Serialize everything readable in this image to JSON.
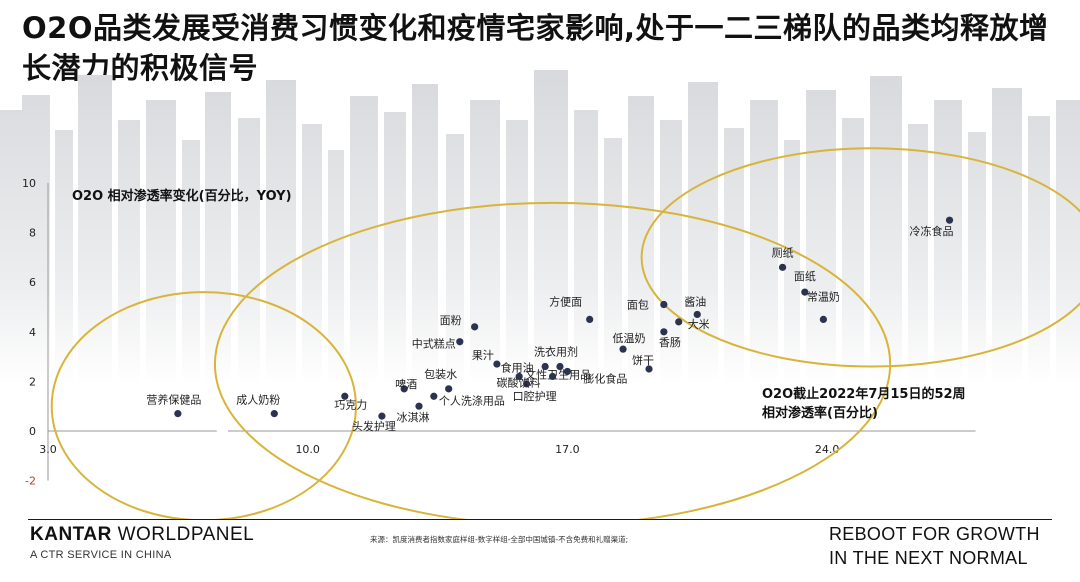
{
  "title": "O2O品类发展受消费习惯变化和疫情宅家影响,处于一二三梯队的品类均释放增长潜力的积极信号",
  "chart_data": {
    "type": "scatter",
    "y_axis_title": "O2O 相对渗透率变化(百分比，YOY)",
    "x_axis_title_line1": "O2O截止2022年7月15日的52周",
    "x_axis_title_line2": "相对渗透率(百分比)",
    "xlim": [
      3.0,
      28.0
    ],
    "ylim": [
      -2,
      10
    ],
    "x_ticks": [
      "3.0",
      "10.0",
      "17.0",
      "24.0"
    ],
    "y_ticks": [
      "-2",
      "0",
      "2",
      "4",
      "6",
      "8",
      "10"
    ],
    "axis_break_at_x": 7.7,
    "points": [
      {
        "label": "营养保健品",
        "x": 6.5,
        "y": 0.7
      },
      {
        "label": "成人奶粉",
        "x": 9.1,
        "y": 0.7
      },
      {
        "label": "巧克力",
        "x": 11.0,
        "y": 1.4
      },
      {
        "label": "头发护理",
        "x": 12.0,
        "y": 0.6
      },
      {
        "label": "啤酒",
        "x": 12.6,
        "y": 1.7
      },
      {
        "label": "冰淇淋",
        "x": 13.0,
        "y": 1.0
      },
      {
        "label": "个人洗涤用品",
        "x": 13.4,
        "y": 1.4
      },
      {
        "label": "包装水",
        "x": 13.8,
        "y": 1.7
      },
      {
        "label": "中式糕点",
        "x": 14.1,
        "y": 3.6
      },
      {
        "label": "面粉",
        "x": 14.5,
        "y": 4.2
      },
      {
        "label": "果汁",
        "x": 15.1,
        "y": 2.7
      },
      {
        "label": "文性卫生用品",
        "x": 15.7,
        "y": 2.2
      },
      {
        "label": "口腔护理",
        "x": 15.9,
        "y": 1.9
      },
      {
        "label": "食用油",
        "x": 16.4,
        "y": 2.6
      },
      {
        "label": "碳酸饮料",
        "x": 16.6,
        "y": 2.2
      },
      {
        "label": "洗衣用剂",
        "x": 16.8,
        "y": 2.6
      },
      {
        "label": "膨化食品",
        "x": 17.0,
        "y": 2.4
      },
      {
        "label": "方便面",
        "x": 17.6,
        "y": 4.5
      },
      {
        "label": "低温奶",
        "x": 18.5,
        "y": 3.3
      },
      {
        "label": "饼干",
        "x": 19.2,
        "y": 2.5
      },
      {
        "label": "香肠",
        "x": 19.6,
        "y": 4.0
      },
      {
        "label": "面包",
        "x": 19.6,
        "y": 5.1
      },
      {
        "label": "大米",
        "x": 20.0,
        "y": 4.4
      },
      {
        "label": "酱油",
        "x": 20.5,
        "y": 4.7
      },
      {
        "label": "厕纸",
        "x": 22.8,
        "y": 6.6
      },
      {
        "label": "面纸",
        "x": 23.4,
        "y": 5.6
      },
      {
        "label": "常温奶",
        "x": 23.9,
        "y": 4.5
      },
      {
        "label": "冷冻食品",
        "x": 27.3,
        "y": 8.5
      }
    ],
    "clusters": [
      {
        "name": "tier-3",
        "cx": 7.2,
        "cy": 1.0,
        "rx": 4.1,
        "ry": 4.6
      },
      {
        "name": "tier-2",
        "cx": 16.6,
        "cy": 2.7,
        "rx": 9.1,
        "ry": 6.5
      },
      {
        "name": "tier-1",
        "cx": 25.2,
        "cy": 7.0,
        "rx": 6.2,
        "ry": 4.4
      }
    ],
    "colors": {
      "point": "#2b3350",
      "ellipse": "#d8b43a",
      "axis": "#9a9a9a",
      "axis_neg": "#c0392b",
      "skyline": "#d8dadd"
    }
  },
  "footer": {
    "brand_bold": "KANTAR",
    "brand_rest": " WORLDPANEL",
    "brand_sub": "A CTR SERVICE IN CHINA",
    "source": "来源：凯度消费者指数家庭样组-数字样组-全部中国城镇-不含免费和礼赠渠道;",
    "tagline_1": "REBOOT FOR GROWTH",
    "tagline_2": "IN THE NEXT NORMAL"
  }
}
